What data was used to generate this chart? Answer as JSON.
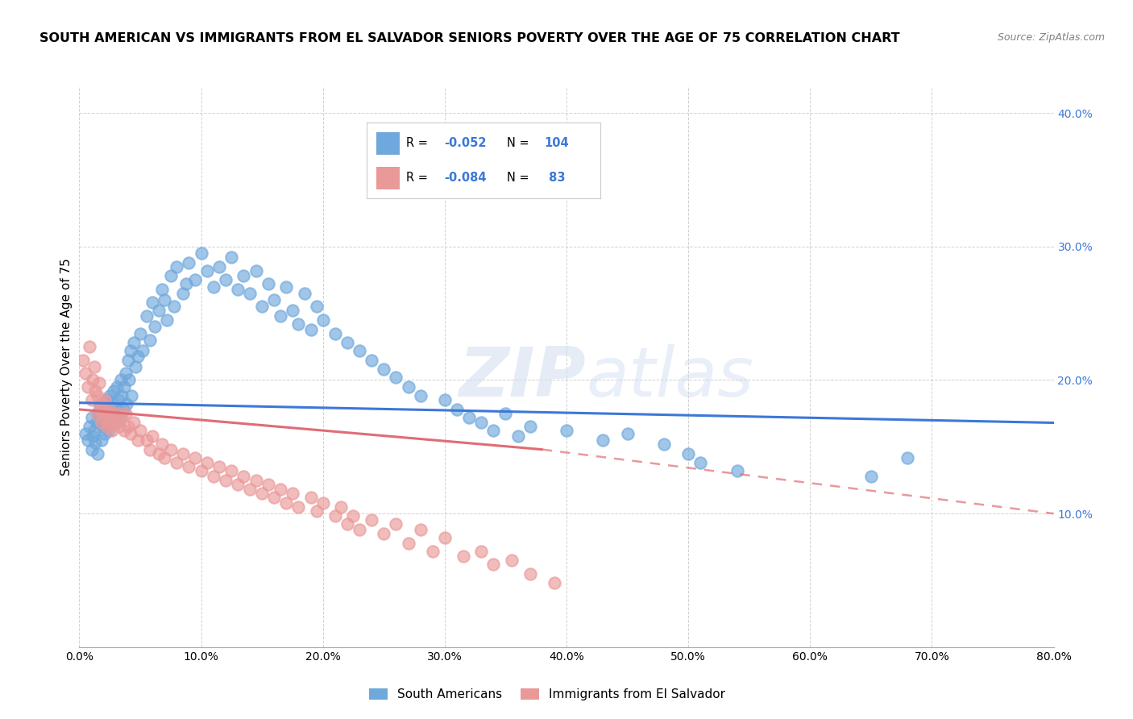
{
  "title": "SOUTH AMERICAN VS IMMIGRANTS FROM EL SALVADOR SENIORS POVERTY OVER THE AGE OF 75 CORRELATION CHART",
  "source": "Source: ZipAtlas.com",
  "ylabel": "Seniors Poverty Over the Age of 75",
  "xlim": [
    0.0,
    0.8
  ],
  "ylim": [
    0.0,
    0.42
  ],
  "xticks": [
    0.0,
    0.1,
    0.2,
    0.3,
    0.4,
    0.5,
    0.6,
    0.7,
    0.8
  ],
  "xticklabels": [
    "0.0%",
    "10.0%",
    "20.0%",
    "30.0%",
    "40.0%",
    "50.0%",
    "60.0%",
    "70.0%",
    "80.0%"
  ],
  "yticks_left": [
    0.0,
    0.1,
    0.2,
    0.3,
    0.4
  ],
  "ytick_labels_left": [
    "",
    "",
    "",
    "",
    ""
  ],
  "right_yticks": [
    0.1,
    0.2,
    0.3,
    0.4
  ],
  "right_yticklabels": [
    "10.0%",
    "20.0%",
    "30.0%",
    "40.0%"
  ],
  "blue_color": "#6fa8dc",
  "pink_color": "#ea9999",
  "blue_line_color": "#3c78d8",
  "pink_line_color": "#e06c75",
  "legend_r_color": "#3c78d8",
  "watermark_zip": "ZIP",
  "watermark_atlas": "atlas",
  "blue_trend_x0": 0.0,
  "blue_trend_x1": 0.8,
  "blue_trend_y0": 0.183,
  "blue_trend_y1": 0.168,
  "pink_trend_x0": 0.0,
  "pink_trend_x1": 0.38,
  "pink_trend_y0": 0.178,
  "pink_trend_y1": 0.148,
  "pink_trend_dash_x0": 0.38,
  "pink_trend_dash_x1": 0.8,
  "pink_trend_dash_y0": 0.148,
  "pink_trend_dash_y1": 0.1,
  "background_color": "#ffffff",
  "grid_color": "#cccccc",
  "title_fontsize": 11.5,
  "source_fontsize": 9,
  "axis_label_fontsize": 11,
  "tick_fontsize": 10,
  "blue_scatter_x": [
    0.005,
    0.007,
    0.008,
    0.01,
    0.01,
    0.011,
    0.012,
    0.013,
    0.014,
    0.015,
    0.016,
    0.017,
    0.018,
    0.019,
    0.02,
    0.021,
    0.022,
    0.023,
    0.024,
    0.025,
    0.026,
    0.027,
    0.028,
    0.029,
    0.03,
    0.031,
    0.032,
    0.033,
    0.034,
    0.035,
    0.036,
    0.037,
    0.038,
    0.039,
    0.04,
    0.041,
    0.042,
    0.043,
    0.045,
    0.046,
    0.048,
    0.05,
    0.052,
    0.055,
    0.058,
    0.06,
    0.062,
    0.065,
    0.068,
    0.07,
    0.072,
    0.075,
    0.078,
    0.08,
    0.085,
    0.088,
    0.09,
    0.095,
    0.1,
    0.105,
    0.11,
    0.115,
    0.12,
    0.125,
    0.13,
    0.135,
    0.14,
    0.145,
    0.15,
    0.155,
    0.16,
    0.165,
    0.17,
    0.175,
    0.18,
    0.185,
    0.19,
    0.195,
    0.2,
    0.21,
    0.22,
    0.23,
    0.24,
    0.25,
    0.26,
    0.27,
    0.28,
    0.3,
    0.31,
    0.32,
    0.33,
    0.34,
    0.35,
    0.36,
    0.37,
    0.4,
    0.43,
    0.45,
    0.48,
    0.5,
    0.51,
    0.54,
    0.65,
    0.68
  ],
  "blue_scatter_y": [
    0.16,
    0.155,
    0.165,
    0.148,
    0.172,
    0.158,
    0.162,
    0.153,
    0.168,
    0.145,
    0.175,
    0.18,
    0.155,
    0.165,
    0.17,
    0.16,
    0.178,
    0.185,
    0.162,
    0.188,
    0.175,
    0.182,
    0.192,
    0.168,
    0.178,
    0.195,
    0.185,
    0.172,
    0.2,
    0.188,
    0.178,
    0.195,
    0.205,
    0.182,
    0.215,
    0.2,
    0.222,
    0.188,
    0.228,
    0.21,
    0.218,
    0.235,
    0.222,
    0.248,
    0.23,
    0.258,
    0.24,
    0.252,
    0.268,
    0.26,
    0.245,
    0.278,
    0.255,
    0.285,
    0.265,
    0.272,
    0.288,
    0.275,
    0.295,
    0.282,
    0.27,
    0.285,
    0.275,
    0.292,
    0.268,
    0.278,
    0.265,
    0.282,
    0.255,
    0.272,
    0.26,
    0.248,
    0.27,
    0.252,
    0.242,
    0.265,
    0.238,
    0.255,
    0.245,
    0.235,
    0.228,
    0.222,
    0.215,
    0.208,
    0.202,
    0.195,
    0.188,
    0.185,
    0.178,
    0.172,
    0.168,
    0.162,
    0.175,
    0.158,
    0.165,
    0.162,
    0.155,
    0.16,
    0.152,
    0.145,
    0.138,
    0.132,
    0.128,
    0.142
  ],
  "pink_scatter_x": [
    0.003,
    0.005,
    0.007,
    0.008,
    0.01,
    0.011,
    0.012,
    0.013,
    0.014,
    0.015,
    0.016,
    0.017,
    0.018,
    0.019,
    0.02,
    0.021,
    0.022,
    0.023,
    0.024,
    0.025,
    0.026,
    0.027,
    0.028,
    0.03,
    0.032,
    0.033,
    0.035,
    0.037,
    0.038,
    0.04,
    0.042,
    0.045,
    0.048,
    0.05,
    0.055,
    0.058,
    0.06,
    0.065,
    0.068,
    0.07,
    0.075,
    0.08,
    0.085,
    0.09,
    0.095,
    0.1,
    0.105,
    0.11,
    0.115,
    0.12,
    0.125,
    0.13,
    0.135,
    0.14,
    0.145,
    0.15,
    0.155,
    0.16,
    0.165,
    0.17,
    0.175,
    0.18,
    0.19,
    0.195,
    0.2,
    0.21,
    0.215,
    0.22,
    0.225,
    0.23,
    0.24,
    0.25,
    0.26,
    0.27,
    0.28,
    0.29,
    0.3,
    0.315,
    0.33,
    0.34,
    0.355,
    0.37,
    0.39
  ],
  "pink_scatter_y": [
    0.215,
    0.205,
    0.195,
    0.225,
    0.185,
    0.2,
    0.21,
    0.192,
    0.175,
    0.188,
    0.198,
    0.178,
    0.168,
    0.182,
    0.172,
    0.185,
    0.175,
    0.165,
    0.178,
    0.168,
    0.175,
    0.162,
    0.172,
    0.168,
    0.175,
    0.165,
    0.172,
    0.162,
    0.175,
    0.165,
    0.16,
    0.168,
    0.155,
    0.162,
    0.155,
    0.148,
    0.158,
    0.145,
    0.152,
    0.142,
    0.148,
    0.138,
    0.145,
    0.135,
    0.142,
    0.132,
    0.138,
    0.128,
    0.135,
    0.125,
    0.132,
    0.122,
    0.128,
    0.118,
    0.125,
    0.115,
    0.122,
    0.112,
    0.118,
    0.108,
    0.115,
    0.105,
    0.112,
    0.102,
    0.108,
    0.098,
    0.105,
    0.092,
    0.098,
    0.088,
    0.095,
    0.085,
    0.092,
    0.078,
    0.088,
    0.072,
    0.082,
    0.068,
    0.072,
    0.062,
    0.065,
    0.055,
    0.048
  ]
}
